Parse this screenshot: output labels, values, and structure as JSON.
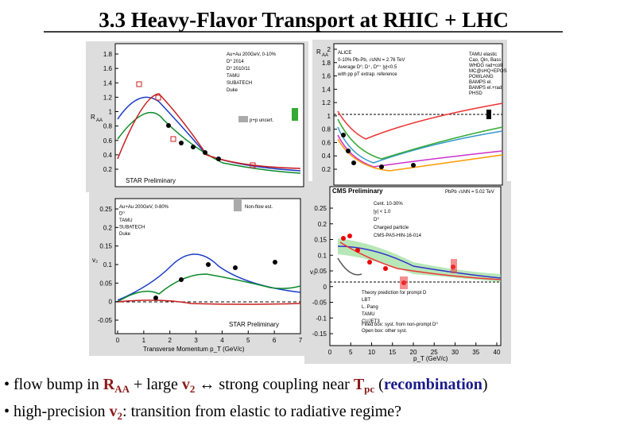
{
  "header": {
    "title": "3.3 Heavy-Flavor Transport at RHIC + LHC"
  },
  "panels": [
    {
      "ylabel": "R",
      "ylabel_sub": "AA",
      "yticks": [
        "1.8",
        "1.6",
        "1.4",
        "1.2",
        "1",
        "0.8",
        "0.6",
        "0.4",
        "0.2"
      ],
      "legend": [
        "Au+Au 200GeV, 0-10%",
        "D⁰ 2014",
        "D⁰ 2010/11",
        "TAMU",
        "SUBATECH",
        "Duke"
      ],
      "note": "p+p uncert.",
      "tag": "STAR Preliminary"
    },
    {
      "ylabel": "R",
      "ylabel_sub": "AA",
      "yticks": [
        "2",
        "1.8",
        "1.6",
        "1.4",
        "1.2",
        "1",
        "0.8",
        "0.6",
        "0.4",
        "0.2"
      ],
      "legend": [
        "ALICE",
        "0-10% Pb-Pb, √sNN = 2.76 TeV",
        "Average D⁰, D⁺, D*⁺ |y|<0.5",
        "with pp pT extrap. reference"
      ],
      "models": [
        "TAMU elastic",
        "Cao, Qin, Bass",
        "WHDG rad+coll",
        "MC@sHQ+EPOS",
        "POWLANG",
        "BAMPS el.",
        "BAMPS el.+rad",
        "PHSD"
      ]
    },
    {
      "ylabel": "v₂",
      "yticks": [
        "0.25",
        "0.2",
        "0.15",
        "0.1",
        "0.05",
        "0",
        "-0.05"
      ],
      "xticks": [
        "0",
        "1",
        "2",
        "3",
        "4",
        "5",
        "6",
        "7"
      ],
      "legend": [
        "Au+Au 200GeV, 0-80%",
        "D⁰",
        "TAMU",
        "SUBATECH",
        "Duke"
      ],
      "note": "Non-flow est.",
      "tag": "STAR Preliminary",
      "xlabel": "Transverse Momentum p_T (GeV/c)"
    },
    {
      "ylabel": "v₂",
      "yticks": [
        "0.25",
        "0.2",
        "0.15",
        "0.1",
        "0.05",
        "0",
        "-0.05",
        "-0.1",
        "-0.15"
      ],
      "xticks": [
        "0",
        "5",
        "10",
        "15",
        "20",
        "25",
        "30",
        "35",
        "40"
      ],
      "header": "CMS Preliminary",
      "energy": "PbPb √sNN = 5.02 TeV",
      "legend": [
        "Cent. 10-30%",
        "|y| < 1.0",
        "D⁰",
        "Charged particle",
        "CMS-PAS-HIN-16-014"
      ],
      "theory": [
        "Theory prediction for prompt D",
        "LBT",
        "L. Pang",
        "TAMU",
        "CUJET3"
      ],
      "notes": [
        "Filled box: syst. from non-prompt D⁰",
        "Open box: other syst."
      ],
      "xlabel": "p_T (GeV/c)"
    }
  ],
  "bullets": [
    [
      "• flow bump in ",
      "R",
      "AA",
      " + large ",
      "v",
      "2",
      " ↔ strong coupling near ",
      "T",
      "pc",
      " (",
      "recombination",
      ")"
    ],
    [
      "• high-precision ",
      "v",
      "2",
      ": transition from elastic to radiative regime?"
    ]
  ]
}
